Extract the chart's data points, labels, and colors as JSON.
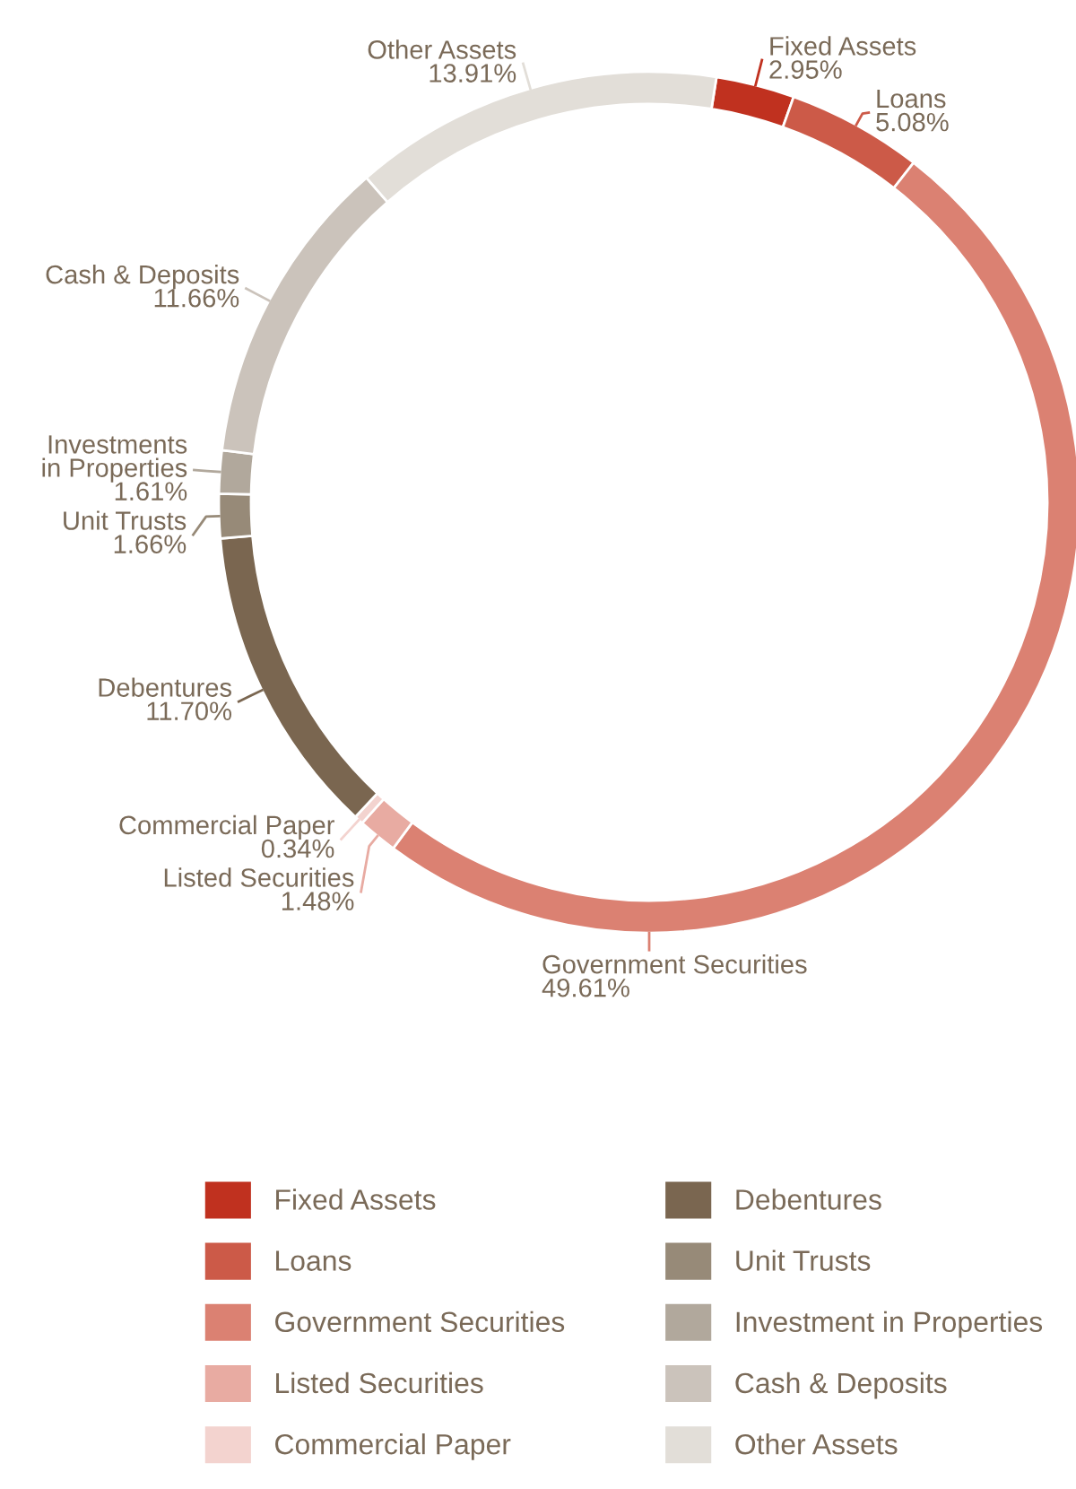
{
  "chart_data": {
    "type": "donut",
    "categories": [
      "Fixed Assets",
      "Loans",
      "Government Securities",
      "Listed Securities",
      "Commercial Paper",
      "Debentures",
      "Unit Trusts",
      "Investment in Properties",
      "Cash & Deposits",
      "Other Assets"
    ],
    "values": [
      2.95,
      5.08,
      49.61,
      1.48,
      0.34,
      11.7,
      1.66,
      1.61,
      11.66,
      13.91
    ],
    "colors": [
      "#c0311f",
      "#cc5a48",
      "#db8172",
      "#e8aba2",
      "#f3d3cf",
      "#7a6650",
      "#978a78",
      "#b1a89c",
      "#cbc3bb",
      "#e2ded8"
    ],
    "value_labels": [
      "Fixed Assets\n2.95%",
      "Loans\n5.08%",
      "Government Securities\n49.61%",
      "Listed Securities\n1.48%",
      "Commercial Paper\n0.34%",
      "Debentures\n11.70%",
      "Unit Trusts\n1.66%",
      "Investments\nin Properties\n1.61%",
      "Cash & Deposits\n11.66%",
      "Other Assets\n13.91%"
    ],
    "legend": "bottom"
  }
}
